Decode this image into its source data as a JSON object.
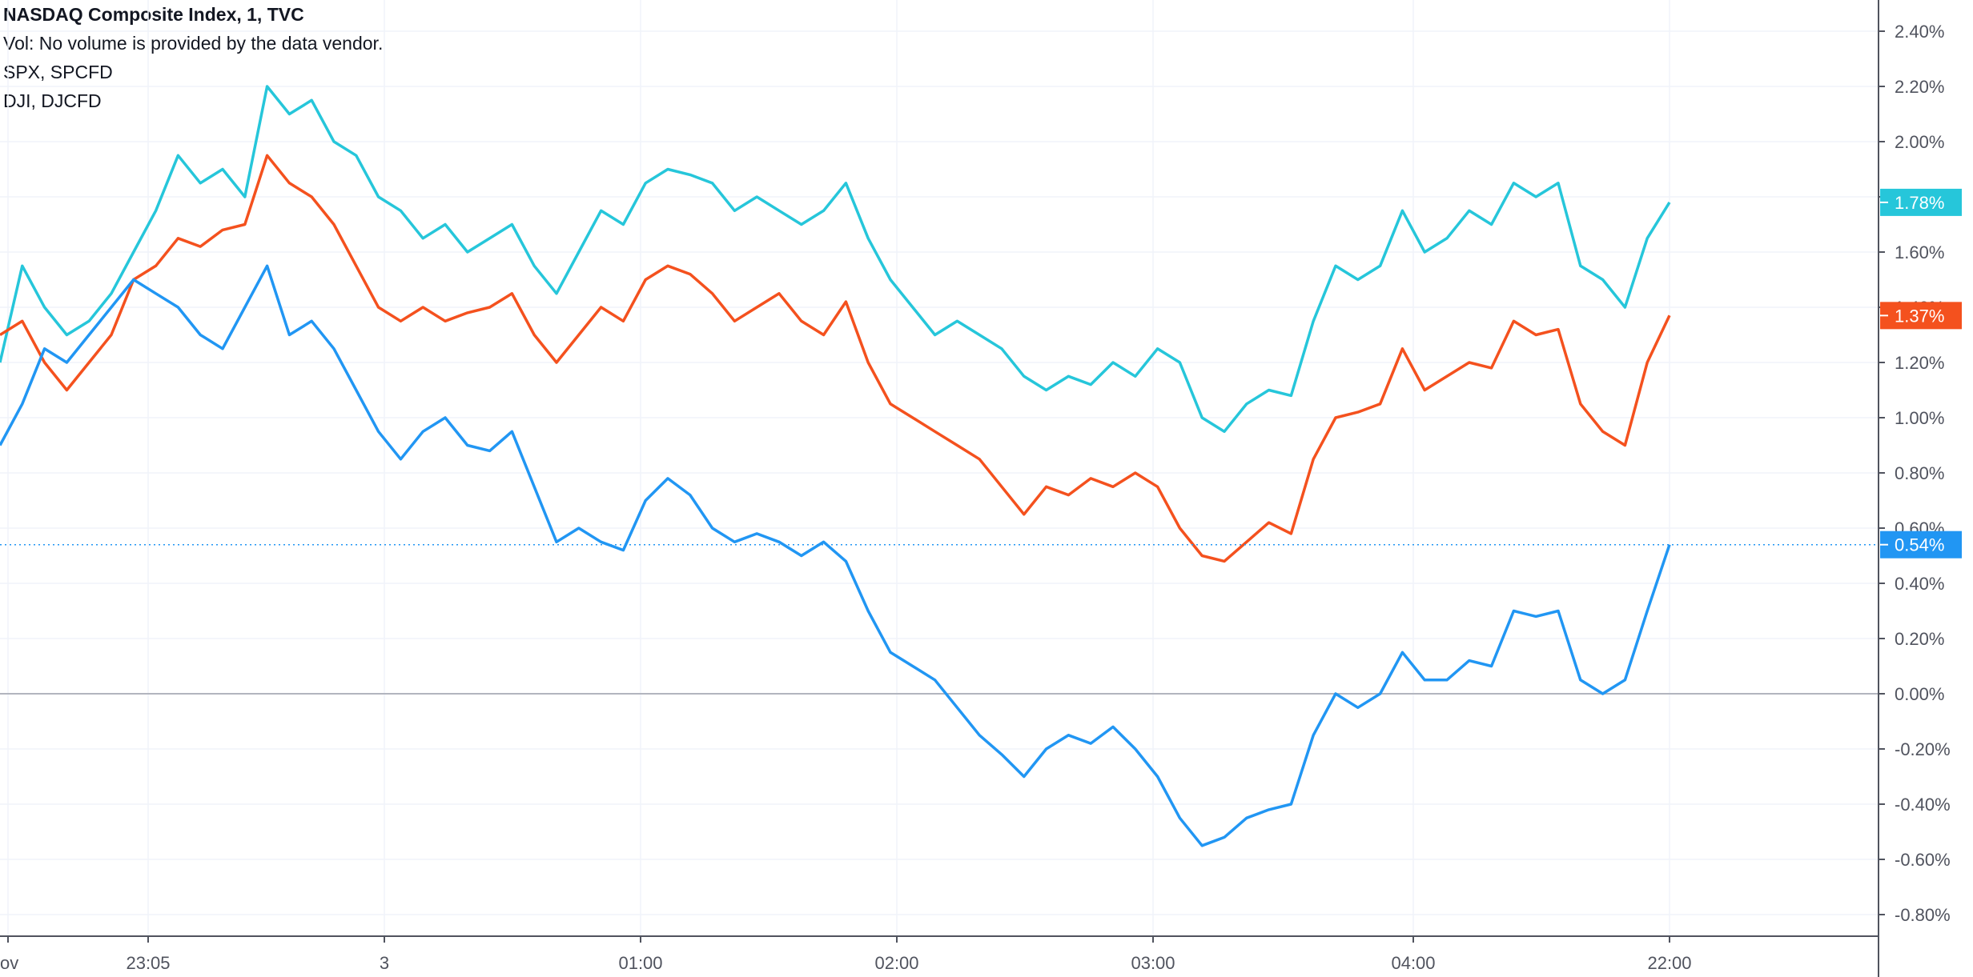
{
  "legend": {
    "title": "NASDAQ Composite Index, 1, TVC",
    "vol": "Vol: No volume is provided by the data vendor.",
    "spx": "SPX, SPCFD",
    "dji": "DJI, DJCFD"
  },
  "chart_data": {
    "type": "line",
    "y_axis": {
      "unit": "%",
      "ylim": [
        -0.85,
        2.5
      ],
      "ticks": [
        "2.40%",
        "2.20%",
        "2.00%",
        "1.80%",
        "1.60%",
        "1.40%",
        "1.20%",
        "1.00%",
        "0.80%",
        "0.60%",
        "0.40%",
        "0.20%",
        "0.00%",
        "-0.20%",
        "-0.40%",
        "-0.60%",
        "-0.80%"
      ],
      "tick_values": [
        2.4,
        2.2,
        2.0,
        1.8,
        1.6,
        1.4,
        1.2,
        1.0,
        0.8,
        0.6,
        0.4,
        0.2,
        0.0,
        -0.2,
        -0.4,
        -0.6,
        -0.8
      ]
    },
    "x_axis": {
      "ticks": [
        "ov",
        "23:05",
        "3",
        "01:00",
        "02:00",
        "03:00",
        "04:00",
        "22:00"
      ]
    },
    "grid": true,
    "zero_line": 0.0,
    "series": [
      {
        "color": "#26c6da",
        "last_value_label": "1.78%",
        "points": [
          [
            0,
            1.2
          ],
          [
            1,
            1.55
          ],
          [
            2,
            1.4
          ],
          [
            3,
            1.3
          ],
          [
            4,
            1.35
          ],
          [
            5,
            1.45
          ],
          [
            6,
            1.6
          ],
          [
            7,
            1.75
          ],
          [
            8,
            1.95
          ],
          [
            9,
            1.85
          ],
          [
            10,
            1.9
          ],
          [
            11,
            1.8
          ],
          [
            12,
            2.2
          ],
          [
            13,
            2.1
          ],
          [
            14,
            2.15
          ],
          [
            15,
            2.0
          ],
          [
            16,
            1.95
          ],
          [
            17,
            1.8
          ],
          [
            18,
            1.75
          ],
          [
            19,
            1.65
          ],
          [
            20,
            1.7
          ],
          [
            21,
            1.6
          ],
          [
            22,
            1.65
          ],
          [
            23,
            1.7
          ],
          [
            24,
            1.55
          ],
          [
            25,
            1.45
          ],
          [
            26,
            1.6
          ],
          [
            27,
            1.75
          ],
          [
            28,
            1.7
          ],
          [
            29,
            1.85
          ],
          [
            30,
            1.9
          ],
          [
            31,
            1.88
          ],
          [
            32,
            1.85
          ],
          [
            33,
            1.75
          ],
          [
            34,
            1.8
          ],
          [
            35,
            1.75
          ],
          [
            36,
            1.7
          ],
          [
            37,
            1.75
          ],
          [
            38,
            1.85
          ],
          [
            39,
            1.65
          ],
          [
            40,
            1.5
          ],
          [
            41,
            1.4
          ],
          [
            42,
            1.3
          ],
          [
            43,
            1.35
          ],
          [
            44,
            1.3
          ],
          [
            45,
            1.25
          ],
          [
            46,
            1.15
          ],
          [
            47,
            1.1
          ],
          [
            48,
            1.15
          ],
          [
            49,
            1.12
          ],
          [
            50,
            1.2
          ],
          [
            51,
            1.15
          ],
          [
            52,
            1.25
          ],
          [
            53,
            1.2
          ],
          [
            54,
            1.0
          ],
          [
            55,
            0.95
          ],
          [
            56,
            1.05
          ],
          [
            57,
            1.1
          ],
          [
            58,
            1.08
          ],
          [
            59,
            1.35
          ],
          [
            60,
            1.55
          ],
          [
            61,
            1.5
          ],
          [
            62,
            1.55
          ],
          [
            63,
            1.75
          ],
          [
            64,
            1.6
          ],
          [
            65,
            1.65
          ],
          [
            66,
            1.75
          ],
          [
            67,
            1.7
          ],
          [
            68,
            1.85
          ],
          [
            69,
            1.8
          ],
          [
            70,
            1.85
          ],
          [
            71,
            1.55
          ],
          [
            72,
            1.5
          ],
          [
            73,
            1.4
          ],
          [
            74,
            1.65
          ],
          [
            75,
            1.78
          ]
        ]
      },
      {
        "color": "#f4511e",
        "last_value_label": "1.37%",
        "points": [
          [
            0,
            1.3
          ],
          [
            1,
            1.35
          ],
          [
            2,
            1.2
          ],
          [
            3,
            1.1
          ],
          [
            4,
            1.2
          ],
          [
            5,
            1.3
          ],
          [
            6,
            1.5
          ],
          [
            7,
            1.55
          ],
          [
            8,
            1.65
          ],
          [
            9,
            1.62
          ],
          [
            10,
            1.68
          ],
          [
            11,
            1.7
          ],
          [
            12,
            1.95
          ],
          [
            13,
            1.85
          ],
          [
            14,
            1.8
          ],
          [
            15,
            1.7
          ],
          [
            16,
            1.55
          ],
          [
            17,
            1.4
          ],
          [
            18,
            1.35
          ],
          [
            19,
            1.4
          ],
          [
            20,
            1.35
          ],
          [
            21,
            1.38
          ],
          [
            22,
            1.4
          ],
          [
            23,
            1.45
          ],
          [
            24,
            1.3
          ],
          [
            25,
            1.2
          ],
          [
            26,
            1.3
          ],
          [
            27,
            1.4
          ],
          [
            28,
            1.35
          ],
          [
            29,
            1.5
          ],
          [
            30,
            1.55
          ],
          [
            31,
            1.52
          ],
          [
            32,
            1.45
          ],
          [
            33,
            1.35
          ],
          [
            34,
            1.4
          ],
          [
            35,
            1.45
          ],
          [
            36,
            1.35
          ],
          [
            37,
            1.3
          ],
          [
            38,
            1.42
          ],
          [
            39,
            1.2
          ],
          [
            40,
            1.05
          ],
          [
            41,
            1.0
          ],
          [
            42,
            0.95
          ],
          [
            43,
            0.9
          ],
          [
            44,
            0.85
          ],
          [
            45,
            0.75
          ],
          [
            46,
            0.65
          ],
          [
            47,
            0.75
          ],
          [
            48,
            0.72
          ],
          [
            49,
            0.78
          ],
          [
            50,
            0.75
          ],
          [
            51,
            0.8
          ],
          [
            52,
            0.75
          ],
          [
            53,
            0.6
          ],
          [
            54,
            0.5
          ],
          [
            55,
            0.48
          ],
          [
            56,
            0.55
          ],
          [
            57,
            0.62
          ],
          [
            58,
            0.58
          ],
          [
            59,
            0.85
          ],
          [
            60,
            1.0
          ],
          [
            61,
            1.02
          ],
          [
            62,
            1.05
          ],
          [
            63,
            1.25
          ],
          [
            64,
            1.1
          ],
          [
            65,
            1.15
          ],
          [
            66,
            1.2
          ],
          [
            67,
            1.18
          ],
          [
            68,
            1.35
          ],
          [
            69,
            1.3
          ],
          [
            70,
            1.32
          ],
          [
            71,
            1.05
          ],
          [
            72,
            0.95
          ],
          [
            73,
            0.9
          ],
          [
            74,
            1.2
          ],
          [
            75,
            1.37
          ]
        ]
      },
      {
        "color": "#2196f3",
        "last_value_label": "0.54%",
        "points": [
          [
            0,
            0.9
          ],
          [
            1,
            1.05
          ],
          [
            2,
            1.25
          ],
          [
            3,
            1.2
          ],
          [
            4,
            1.3
          ],
          [
            5,
            1.4
          ],
          [
            6,
            1.5
          ],
          [
            7,
            1.45
          ],
          [
            8,
            1.4
          ],
          [
            9,
            1.3
          ],
          [
            10,
            1.25
          ],
          [
            11,
            1.4
          ],
          [
            12,
            1.55
          ],
          [
            13,
            1.3
          ],
          [
            14,
            1.35
          ],
          [
            15,
            1.25
          ],
          [
            16,
            1.1
          ],
          [
            17,
            0.95
          ],
          [
            18,
            0.85
          ],
          [
            19,
            0.95
          ],
          [
            20,
            1.0
          ],
          [
            21,
            0.9
          ],
          [
            22,
            0.88
          ],
          [
            23,
            0.95
          ],
          [
            24,
            0.75
          ],
          [
            25,
            0.55
          ],
          [
            26,
            0.6
          ],
          [
            27,
            0.55
          ],
          [
            28,
            0.52
          ],
          [
            29,
            0.7
          ],
          [
            30,
            0.78
          ],
          [
            31,
            0.72
          ],
          [
            32,
            0.6
          ],
          [
            33,
            0.55
          ],
          [
            34,
            0.58
          ],
          [
            35,
            0.55
          ],
          [
            36,
            0.5
          ],
          [
            37,
            0.55
          ],
          [
            38,
            0.48
          ],
          [
            39,
            0.3
          ],
          [
            40,
            0.15
          ],
          [
            41,
            0.1
          ],
          [
            42,
            0.05
          ],
          [
            43,
            -0.05
          ],
          [
            44,
            -0.15
          ],
          [
            45,
            -0.22
          ],
          [
            46,
            -0.3
          ],
          [
            47,
            -0.2
          ],
          [
            48,
            -0.15
          ],
          [
            49,
            -0.18
          ],
          [
            50,
            -0.12
          ],
          [
            51,
            -0.2
          ],
          [
            52,
            -0.3
          ],
          [
            53,
            -0.45
          ],
          [
            54,
            -0.55
          ],
          [
            55,
            -0.52
          ],
          [
            56,
            -0.45
          ],
          [
            57,
            -0.42
          ],
          [
            58,
            -0.4
          ],
          [
            59,
            -0.15
          ],
          [
            60,
            0.0
          ],
          [
            61,
            -0.05
          ],
          [
            62,
            0.0
          ],
          [
            63,
            0.15
          ],
          [
            64,
            0.05
          ],
          [
            65,
            0.05
          ],
          [
            66,
            0.12
          ],
          [
            67,
            0.1
          ],
          [
            68,
            0.3
          ],
          [
            69,
            0.28
          ],
          [
            70,
            0.3
          ],
          [
            71,
            0.05
          ],
          [
            72,
            0.0
          ],
          [
            73,
            0.05
          ],
          [
            74,
            0.3
          ],
          [
            75,
            0.54
          ]
        ]
      }
    ]
  }
}
